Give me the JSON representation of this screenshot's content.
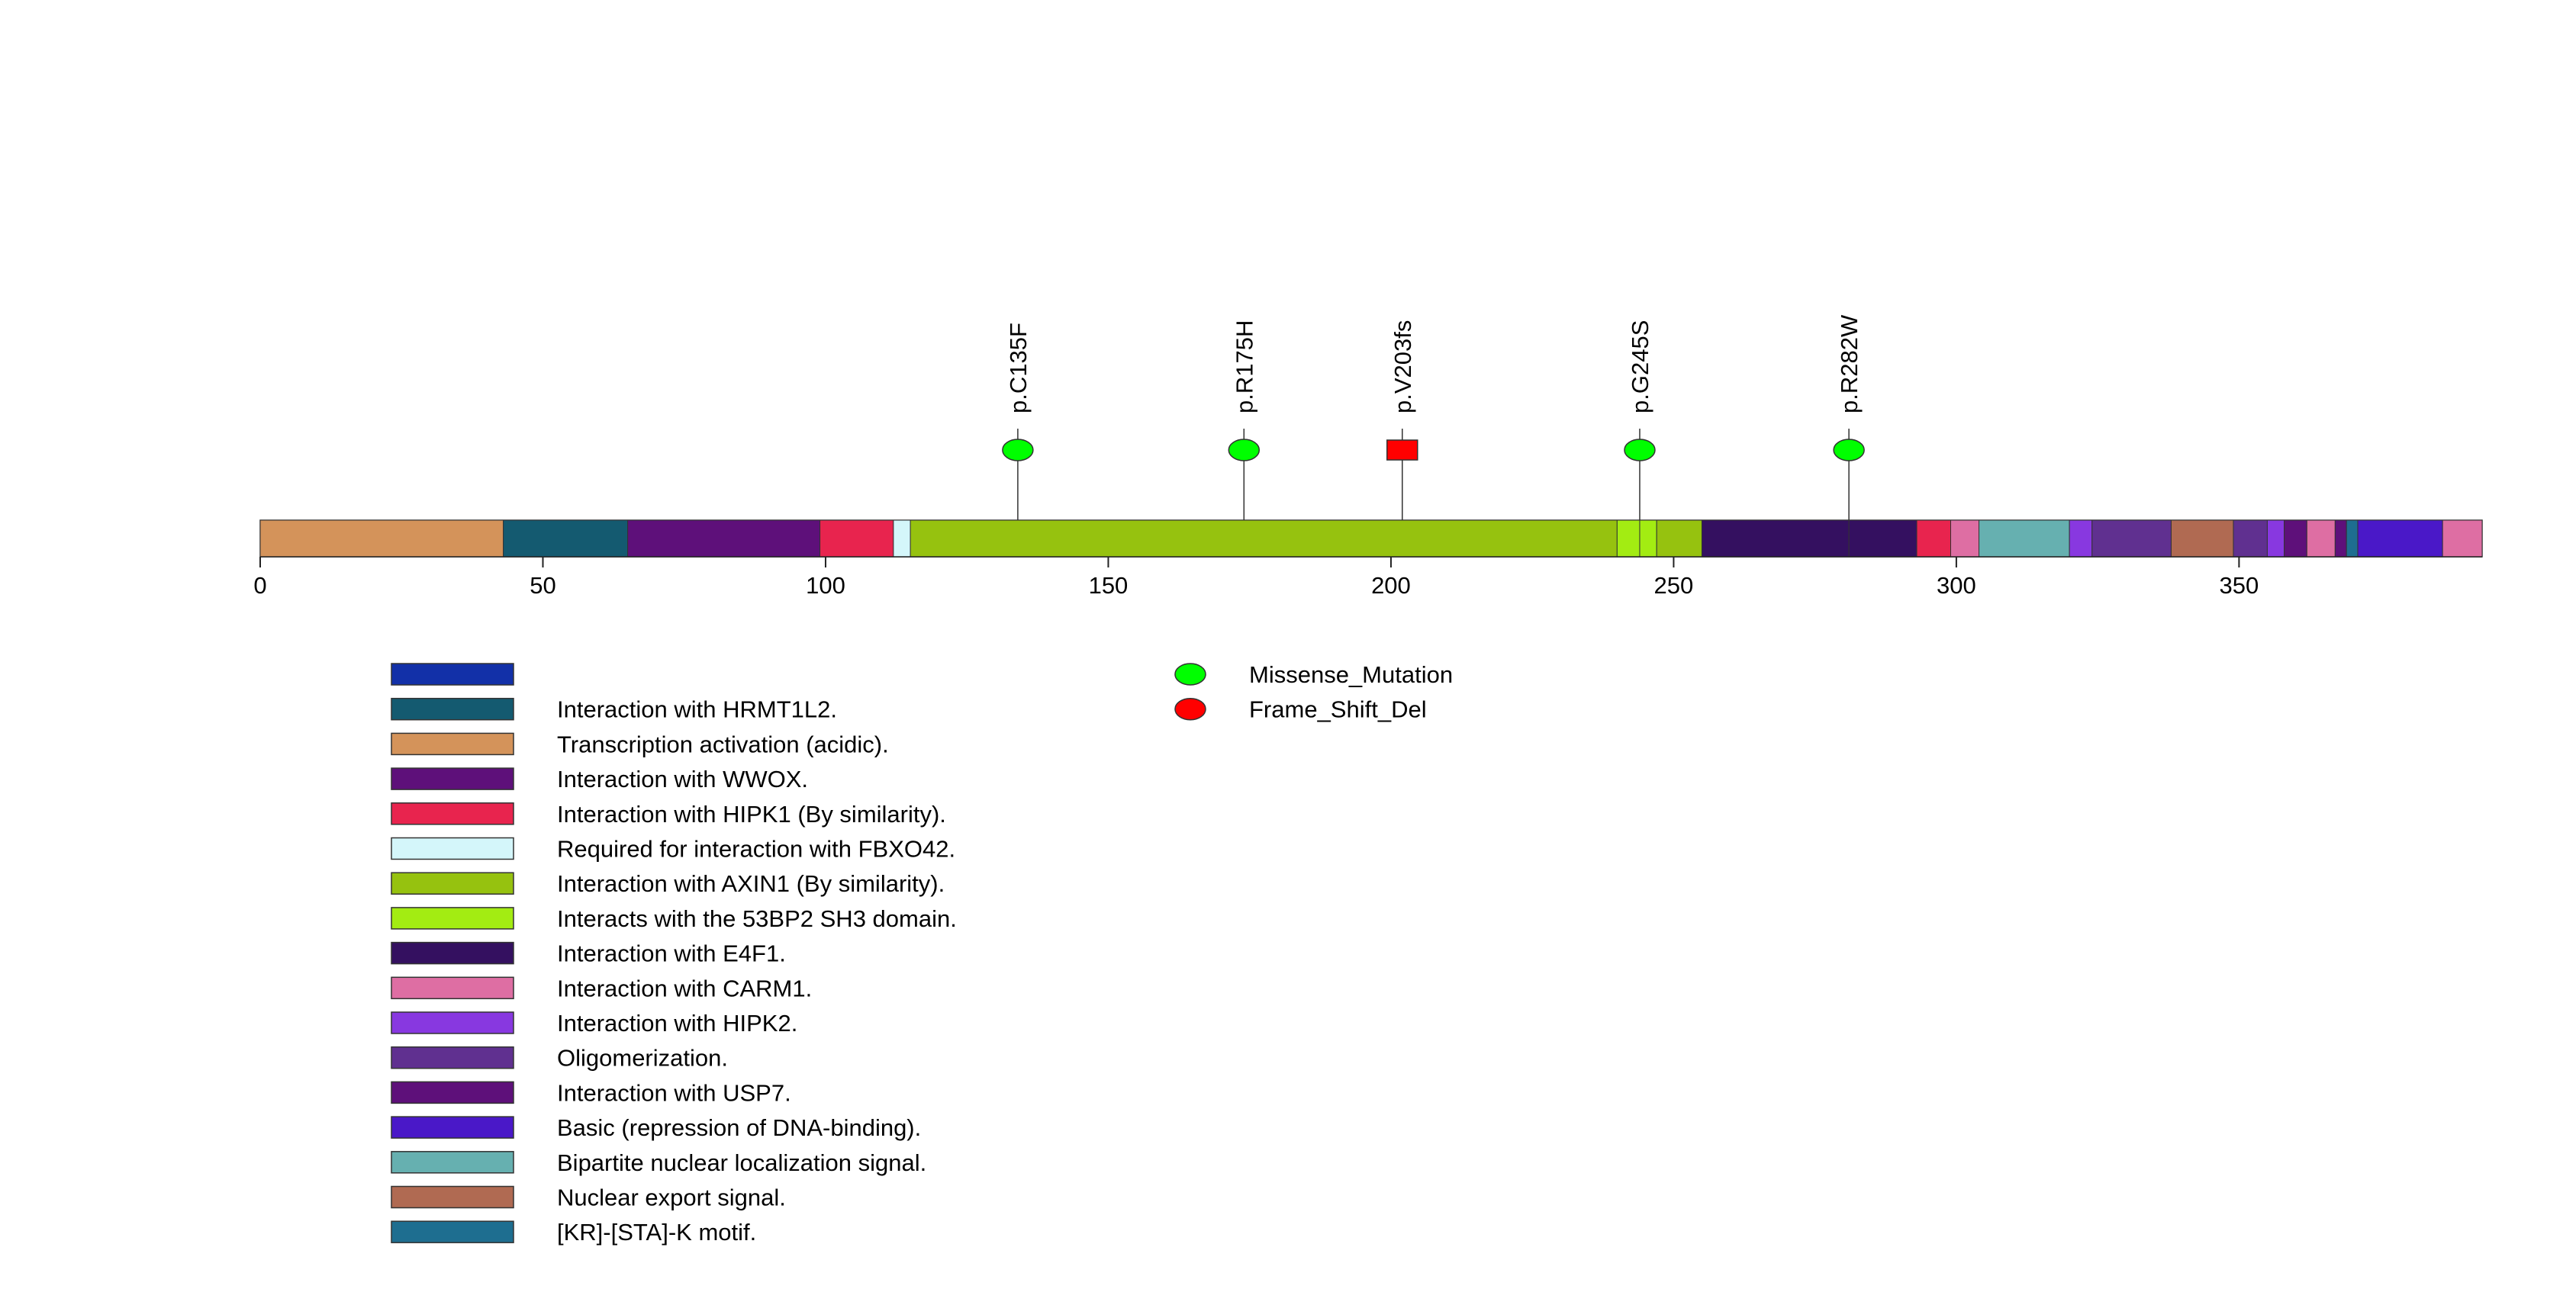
{
  "chart_data": {
    "type": "lollipop",
    "protein_length": 393,
    "axis": {
      "xlim": [
        0,
        393
      ],
      "ticks": [
        0,
        50,
        100,
        150,
        200,
        250,
        300,
        350
      ]
    },
    "domains": [
      {
        "start": 0,
        "end": 43,
        "color": "#d4935a",
        "label": "Transcription activation (acidic)."
      },
      {
        "start": 43,
        "end": 65,
        "color": "#145a70",
        "label": "Interaction with HRMT1L2."
      },
      {
        "start": 65,
        "end": 99,
        "color": "#5e107a",
        "label": "Interaction with WWOX."
      },
      {
        "start": 99,
        "end": 112,
        "color": "#e8244e",
        "label": "Interaction with HIPK1 (By similarity)."
      },
      {
        "start": 112,
        "end": 115,
        "color": "#d4f6fa",
        "label": "Required for interaction with FBXO42."
      },
      {
        "start": 115,
        "end": 240,
        "color": "#96c20f",
        "label": "Interaction with AXIN1 (By similarity)."
      },
      {
        "start": 240,
        "end": 244,
        "color": "#a3ec12",
        "label": "Interacts with the 53BP2 SH3 domain."
      },
      {
        "start": 244,
        "end": 247,
        "color": "#a3ec12",
        "label": "Interacts with the 53BP2 SH3 domain."
      },
      {
        "start": 247,
        "end": 255,
        "color": "#96c20f",
        "label": "Interaction with AXIN1 (By similarity)."
      },
      {
        "start": 255,
        "end": 281,
        "color": "#341060",
        "label": "Interaction with E4F1."
      },
      {
        "start": 281,
        "end": 293,
        "color": "#341060",
        "label": "Interaction with E4F1."
      },
      {
        "start": 293,
        "end": 299,
        "color": "#e8244e",
        "label": "Interaction with HIPK1 (By similarity)."
      },
      {
        "start": 299,
        "end": 304,
        "color": "#de6ea3",
        "label": "Interaction with CARM1."
      },
      {
        "start": 304,
        "end": 320,
        "color": "#66b0b0",
        "label": "Bipartite nuclear localization signal."
      },
      {
        "start": 320,
        "end": 324,
        "color": "#8838e0",
        "label": "Interaction with HIPK2."
      },
      {
        "start": 324,
        "end": 338,
        "color": "#603090",
        "label": "Oligomerization."
      },
      {
        "start": 338,
        "end": 349,
        "color": "#b06a52",
        "label": "Nuclear export signal."
      },
      {
        "start": 349,
        "end": 355,
        "color": "#603090",
        "label": "Oligomerization."
      },
      {
        "start": 355,
        "end": 358,
        "color": "#8838e0",
        "label": "Interaction with HIPK2."
      },
      {
        "start": 358,
        "end": 362,
        "color": "#5e107a",
        "label": "Interaction with USP7."
      },
      {
        "start": 362,
        "end": 367,
        "color": "#de6ea3",
        "label": "Interaction with CARM1."
      },
      {
        "start": 367,
        "end": 369,
        "color": "#5e107a",
        "label": "Interaction with USP7."
      },
      {
        "start": 369,
        "end": 371,
        "color": "#1e6e90",
        "label": "[KR]-[STA]-K motif."
      },
      {
        "start": 371,
        "end": 386,
        "color": "#4a18c8",
        "label": "Basic (repression of DNA-binding)."
      },
      {
        "start": 386,
        "end": 393,
        "color": "#de6ea3",
        "label": "Interaction with CARM1."
      }
    ],
    "mutations": [
      {
        "label": "p.C135F",
        "position": 134,
        "type": "Missense_Mutation"
      },
      {
        "label": "p.R175H",
        "position": 174,
        "type": "Missense_Mutation"
      },
      {
        "label": "p.V203fs",
        "position": 202,
        "type": "Frame_Shift_Del"
      },
      {
        "label": "p.G245S",
        "position": 244,
        "type": "Missense_Mutation"
      },
      {
        "label": "p.R282W",
        "position": 281,
        "type": "Missense_Mutation"
      }
    ],
    "domain_legend": [
      {
        "label": "",
        "color": "#1230a8"
      },
      {
        "label": "Interaction with HRMT1L2.",
        "color": "#145a70"
      },
      {
        "label": "Transcription activation (acidic).",
        "color": "#d4935a"
      },
      {
        "label": "Interaction with WWOX.",
        "color": "#5e107a"
      },
      {
        "label": "Interaction with HIPK1 (By similarity).",
        "color": "#e8244e"
      },
      {
        "label": "Required for interaction with FBXO42.",
        "color": "#d4f6fa"
      },
      {
        "label": "Interaction with AXIN1 (By similarity).",
        "color": "#96c20f"
      },
      {
        "label": "Interacts with the 53BP2 SH3 domain.",
        "color": "#a3ec12"
      },
      {
        "label": "Interaction with E4F1.",
        "color": "#341060"
      },
      {
        "label": "Interaction with CARM1.",
        "color": "#de6ea3"
      },
      {
        "label": "Interaction with HIPK2.",
        "color": "#8838e0"
      },
      {
        "label": "Oligomerization.",
        "color": "#603090"
      },
      {
        "label": "Interaction with USP7.",
        "color": "#5e107a"
      },
      {
        "label": "Basic (repression of DNA-binding).",
        "color": "#4a18c8"
      },
      {
        "label": "Bipartite nuclear localization signal.",
        "color": "#66b0b0"
      },
      {
        "label": "Nuclear export signal.",
        "color": "#b06a52"
      },
      {
        "label": "[KR]-[STA]-K motif.",
        "color": "#1e6e90"
      }
    ],
    "mutation_legend": [
      {
        "label": "Missense_Mutation",
        "color": "#00ff00"
      },
      {
        "label": "Frame_Shift_Del",
        "color": "#ff0000"
      }
    ]
  }
}
